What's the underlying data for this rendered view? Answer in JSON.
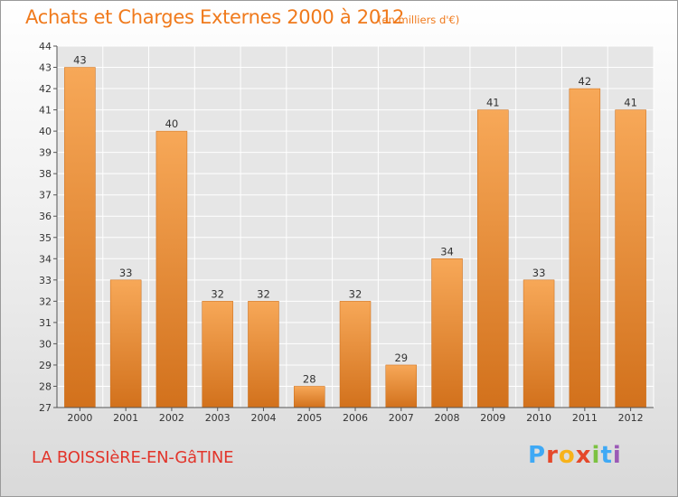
{
  "header": {
    "title": "Achats et Charges Externes 2000 à 2012",
    "subtitle": "(en milliers d'€)"
  },
  "footer": {
    "commune": "LA BOISSIèRE-EN-GâTINE",
    "logo_letters": [
      "P",
      "r",
      "o",
      "x",
      "i",
      "t",
      "i"
    ],
    "logo_colors": [
      "#3fa9f5",
      "#e5482a",
      "#f7b21a",
      "#e5482a",
      "#7cc242",
      "#3fa9f5",
      "#9b59b6"
    ]
  },
  "colors": {
    "bar_top": "#f7a858",
    "bar_bottom": "#d2711c",
    "grid": "#ffffff",
    "axis": "#555555"
  },
  "chart_data": {
    "type": "bar",
    "title": "Achats et Charges Externes 2000 à 2012",
    "subtitle": "(en milliers d'€)",
    "categories": [
      "2000",
      "2001",
      "2002",
      "2003",
      "2004",
      "2005",
      "2006",
      "2007",
      "2008",
      "2009",
      "2010",
      "2011",
      "2012"
    ],
    "values": [
      43,
      33,
      40,
      32,
      32,
      28,
      32,
      29,
      34,
      41,
      33,
      42,
      41
    ],
    "ylim": [
      27,
      44
    ],
    "yticks": [
      27,
      28,
      29,
      30,
      31,
      32,
      33,
      34,
      35,
      36,
      37,
      38,
      39,
      40,
      41,
      42,
      43,
      44
    ],
    "grid": true,
    "xlabel": "",
    "ylabel": ""
  }
}
